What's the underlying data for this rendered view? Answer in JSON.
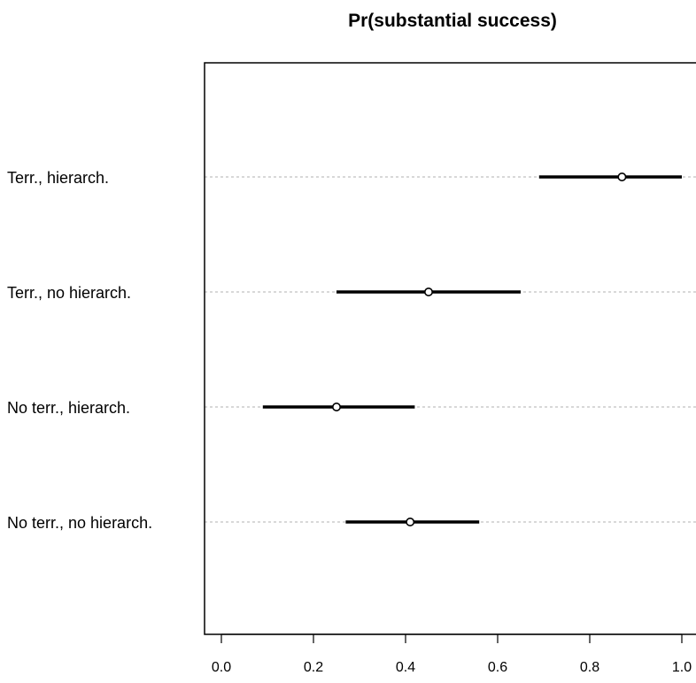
{
  "chart_data": {
    "type": "dot-interval",
    "title": "Pr(substantial success)",
    "xlabel": "",
    "ylabel": "",
    "xlim": [
      -0.04,
      1.03
    ],
    "x_ticks": [
      0.0,
      0.2,
      0.4,
      0.6,
      0.8,
      1.0
    ],
    "x_tick_labels": [
      "0.0",
      "0.2",
      "0.4",
      "0.6",
      "0.8",
      "1.0"
    ],
    "grid": "dotted horizontal at each category",
    "categories": [
      "Terr., hierarch.",
      "Terr., no hierarch.",
      "No terr., hierarch.",
      "No terr., no hierarch."
    ],
    "points": [
      {
        "category": "Terr., hierarch.",
        "estimate": 0.87,
        "lower": 0.69,
        "upper": 1.0
      },
      {
        "category": "Terr., no hierarch.",
        "estimate": 0.45,
        "lower": 0.25,
        "upper": 0.65
      },
      {
        "category": "No terr., hierarch.",
        "estimate": 0.25,
        "lower": 0.09,
        "upper": 0.42
      },
      {
        "category": "No terr., no hierarch.",
        "estimate": 0.41,
        "lower": 0.27,
        "upper": 0.56
      }
    ],
    "colors": {
      "line": "#000000",
      "grid": "#b0b0b0",
      "point_fill": "#ffffff"
    }
  }
}
